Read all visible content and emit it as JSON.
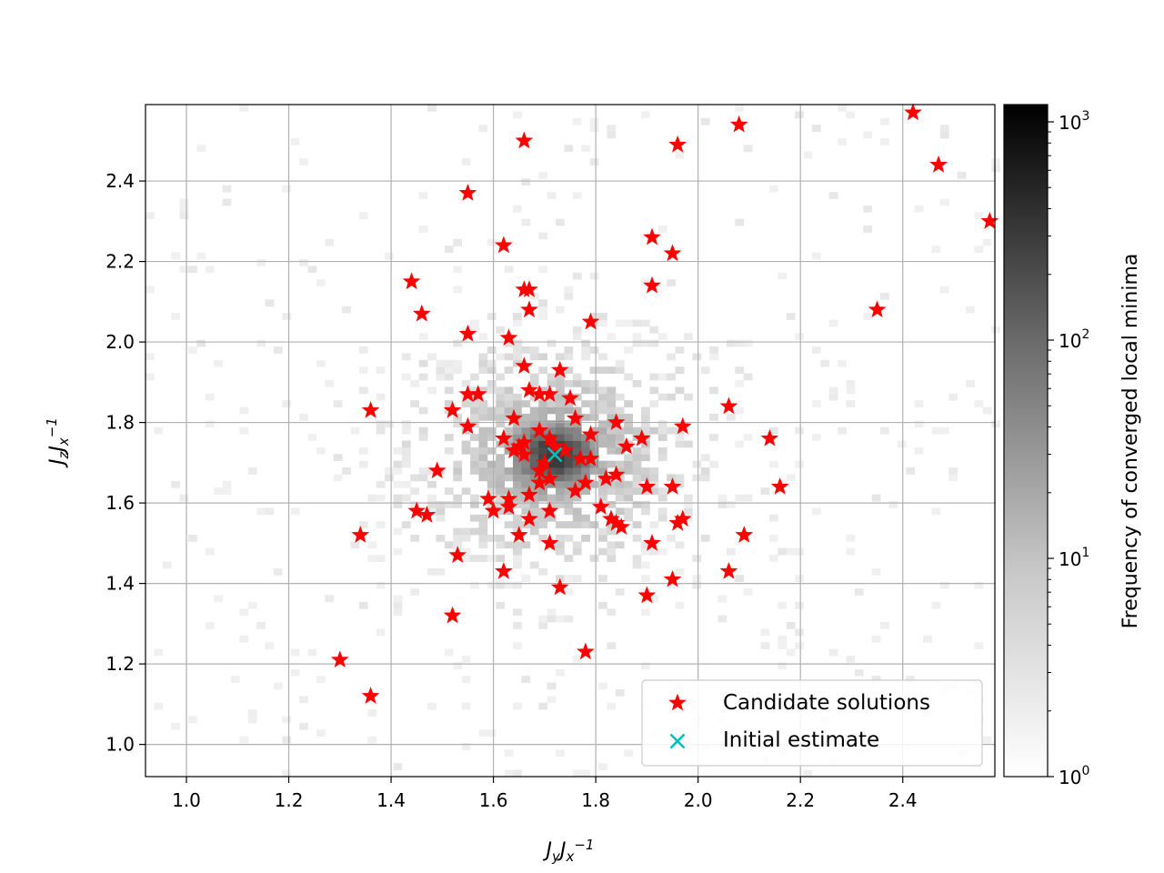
{
  "chart_data": {
    "type": "scatter",
    "title": "",
    "xlabel": "J_y J_x^{-1}",
    "ylabel": "J_z J_x^{-1}",
    "xlim": [
      0.92,
      2.58
    ],
    "ylim": [
      0.92,
      2.59
    ],
    "x_ticks": [
      "1.0",
      "1.2",
      "1.4",
      "1.6",
      "1.8",
      "2.0",
      "2.2",
      "2.4"
    ],
    "y_ticks": [
      "1.0",
      "1.2",
      "1.4",
      "1.6",
      "1.8",
      "2.0",
      "2.2",
      "2.4"
    ],
    "grid": true,
    "legend_position": "lower-right",
    "colorbar": {
      "label": "Frequency of converged local minima",
      "scale": "log",
      "range": [
        1,
        1200
      ],
      "ticks": [
        {
          "value": 1,
          "base": "10",
          "exp": "0"
        },
        {
          "value": 10,
          "base": "10",
          "exp": "1"
        },
        {
          "value": 100,
          "base": "10",
          "exp": "2"
        },
        {
          "value": 1000,
          "base": "10",
          "exp": "3"
        }
      ],
      "colormap": "Greys"
    },
    "background_histogram": {
      "description": "2D histogram of converged local minima, peak near (1.72, 1.72)",
      "peak": [
        1.72,
        1.72
      ]
    },
    "series": [
      {
        "name": "Candidate solutions",
        "marker": "star",
        "color": "#ff0000",
        "points": [
          [
            1.66,
            2.5
          ],
          [
            1.96,
            2.49
          ],
          [
            2.08,
            2.54
          ],
          [
            2.42,
            2.57
          ],
          [
            2.47,
            2.44
          ],
          [
            2.57,
            2.3
          ],
          [
            1.55,
            2.37
          ],
          [
            1.62,
            2.24
          ],
          [
            1.91,
            2.26
          ],
          [
            1.95,
            2.22
          ],
          [
            1.44,
            2.15
          ],
          [
            1.66,
            2.13
          ],
          [
            1.67,
            2.13
          ],
          [
            1.91,
            2.14
          ],
          [
            1.46,
            2.07
          ],
          [
            1.67,
            2.08
          ],
          [
            2.35,
            2.08
          ],
          [
            1.55,
            2.02
          ],
          [
            1.63,
            2.01
          ],
          [
            1.79,
            2.05
          ],
          [
            1.66,
            1.94
          ],
          [
            1.73,
            1.93
          ],
          [
            1.36,
            1.83
          ],
          [
            1.52,
            1.83
          ],
          [
            1.55,
            1.87
          ],
          [
            1.57,
            1.87
          ],
          [
            1.67,
            1.88
          ],
          [
            1.69,
            1.87
          ],
          [
            1.71,
            1.87
          ],
          [
            1.75,
            1.86
          ],
          [
            2.06,
            1.84
          ],
          [
            1.64,
            1.81
          ],
          [
            1.55,
            1.79
          ],
          [
            1.76,
            1.81
          ],
          [
            1.79,
            1.77
          ],
          [
            1.84,
            1.8
          ],
          [
            1.97,
            1.79
          ],
          [
            1.62,
            1.76
          ],
          [
            1.65,
            1.74
          ],
          [
            1.66,
            1.75
          ],
          [
            1.69,
            1.78
          ],
          [
            1.71,
            1.76
          ],
          [
            1.72,
            1.74
          ],
          [
            1.74,
            1.73
          ],
          [
            1.89,
            1.76
          ],
          [
            2.14,
            1.76
          ],
          [
            1.64,
            1.73
          ],
          [
            1.66,
            1.72
          ],
          [
            1.7,
            1.7
          ],
          [
            1.77,
            1.71
          ],
          [
            1.79,
            1.71
          ],
          [
            1.86,
            1.74
          ],
          [
            1.49,
            1.68
          ],
          [
            1.69,
            1.68
          ],
          [
            1.71,
            1.66
          ],
          [
            1.69,
            1.65
          ],
          [
            1.67,
            1.62
          ],
          [
            1.82,
            1.66
          ],
          [
            1.84,
            1.67
          ],
          [
            1.76,
            1.63
          ],
          [
            1.78,
            1.65
          ],
          [
            1.9,
            1.64
          ],
          [
            1.95,
            1.64
          ],
          [
            2.16,
            1.64
          ],
          [
            1.59,
            1.61
          ],
          [
            1.63,
            1.61
          ],
          [
            1.6,
            1.58
          ],
          [
            1.63,
            1.59
          ],
          [
            1.45,
            1.58
          ],
          [
            1.47,
            1.57
          ],
          [
            1.71,
            1.58
          ],
          [
            1.67,
            1.56
          ],
          [
            1.81,
            1.59
          ],
          [
            1.83,
            1.56
          ],
          [
            1.84,
            1.55
          ],
          [
            1.85,
            1.54
          ],
          [
            1.96,
            1.55
          ],
          [
            1.97,
            1.56
          ],
          [
            1.34,
            1.52
          ],
          [
            1.65,
            1.52
          ],
          [
            1.71,
            1.5
          ],
          [
            1.91,
            1.5
          ],
          [
            2.09,
            1.52
          ],
          [
            1.53,
            1.47
          ],
          [
            1.62,
            1.43
          ],
          [
            1.73,
            1.39
          ],
          [
            1.9,
            1.37
          ],
          [
            1.95,
            1.41
          ],
          [
            2.06,
            1.43
          ],
          [
            1.52,
            1.32
          ],
          [
            1.78,
            1.23
          ],
          [
            1.3,
            1.21
          ],
          [
            1.36,
            1.12
          ]
        ]
      },
      {
        "name": "Initial estimate",
        "marker": "x",
        "color": "#00bfbf",
        "points": [
          [
            1.72,
            1.72
          ]
        ]
      }
    ]
  }
}
